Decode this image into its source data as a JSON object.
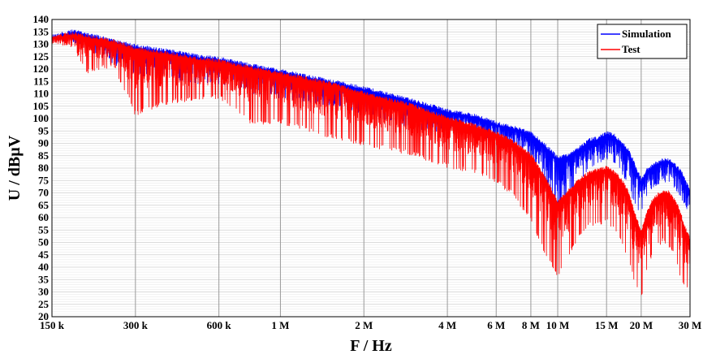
{
  "chart_data": {
    "type": "line",
    "title": "",
    "xlabel": "F / Hz",
    "ylabel": "U / dBµV",
    "x_scale": "log",
    "xlim": [
      150000,
      30000000
    ],
    "ylim": [
      20,
      140
    ],
    "grid": true,
    "legend_position": "top-right",
    "x_ticks": [
      {
        "value": 150000,
        "label": "150 k"
      },
      {
        "value": 300000,
        "label": "300 k"
      },
      {
        "value": 600000,
        "label": "600 k"
      },
      {
        "value": 1000000,
        "label": "1 M"
      },
      {
        "value": 2000000,
        "label": "2 M"
      },
      {
        "value": 4000000,
        "label": "4 M"
      },
      {
        "value": 6000000,
        "label": "6 M"
      },
      {
        "value": 8000000,
        "label": "8 M"
      },
      {
        "value": 10000000,
        "label": "10 M"
      },
      {
        "value": 15000000,
        "label": "15 M"
      },
      {
        "value": 20000000,
        "label": "20 M"
      },
      {
        "value": 30000000,
        "label": "30 M"
      }
    ],
    "y_ticks": [
      20,
      25,
      30,
      35,
      40,
      45,
      50,
      55,
      60,
      65,
      70,
      75,
      80,
      85,
      90,
      95,
      100,
      105,
      110,
      115,
      120,
      125,
      130,
      135,
      140
    ],
    "series": [
      {
        "name": "Simulation",
        "color": "#0000ff",
        "x": [
          150000,
          180000,
          200000,
          250000,
          300000,
          400000,
          500000,
          600000,
          800000,
          1000000,
          1500000,
          2000000,
          3000000,
          4000000,
          5000000,
          6000000,
          7000000,
          8000000,
          9000000,
          10000000,
          11000000,
          12000000,
          13000000,
          14000000,
          15000000,
          16000000,
          17000000,
          18000000,
          19000000,
          20000000,
          21000000,
          22000000,
          23000000,
          24000000,
          25000000,
          26000000,
          27000000,
          28000000,
          29000000,
          30000000
        ],
        "max": [
          134,
          136,
          135,
          132,
          130,
          128,
          126,
          125,
          122,
          120,
          116,
          113,
          108,
          104,
          102,
          99,
          97,
          95,
          90,
          85,
          86,
          89,
          92,
          93,
          95,
          94,
          91,
          88,
          82,
          76,
          80,
          82,
          83,
          84,
          84,
          83,
          81,
          79,
          75,
          72
        ],
        "min": [
          132,
          130,
          128,
          122,
          117,
          116,
          114,
          114,
          110,
          108,
          105,
          102,
          96,
          94,
          92,
          90,
          87,
          83,
          72,
          62,
          68,
          75,
          79,
          82,
          83,
          82,
          78,
          73,
          64,
          62,
          68,
          71,
          73,
          74,
          74,
          72,
          70,
          67,
          64,
          62
        ]
      },
      {
        "name": "Test",
        "color": "#ff0000",
        "x": [
          150000,
          180000,
          200000,
          250000,
          300000,
          400000,
          500000,
          600000,
          800000,
          1000000,
          1500000,
          2000000,
          3000000,
          4000000,
          5000000,
          6000000,
          7000000,
          8000000,
          9000000,
          10000000,
          11000000,
          12000000,
          13000000,
          14000000,
          15000000,
          16000000,
          17000000,
          18000000,
          19000000,
          20000000,
          21000000,
          22000000,
          23000000,
          24000000,
          25000000,
          26000000,
          27000000,
          28000000,
          29000000,
          30000000
        ],
        "max": [
          134,
          135,
          134,
          132,
          129,
          127,
          125,
          124,
          121,
          119,
          115,
          111,
          106,
          101,
          98,
          95,
          91,
          86,
          77,
          67,
          72,
          76,
          79,
          80,
          81,
          79,
          76,
          71,
          62,
          55,
          63,
          68,
          70,
          71,
          71,
          69,
          66,
          61,
          56,
          52
        ],
        "min": [
          131,
          128,
          118,
          121,
          101,
          106,
          107,
          108,
          97,
          98,
          92,
          89,
          85,
          80,
          78,
          74,
          68,
          58,
          45,
          36,
          44,
          52,
          56,
          57,
          58,
          55,
          50,
          42,
          33,
          27,
          38,
          45,
          48,
          50,
          48,
          45,
          40,
          34,
          31,
          30
        ]
      }
    ]
  }
}
